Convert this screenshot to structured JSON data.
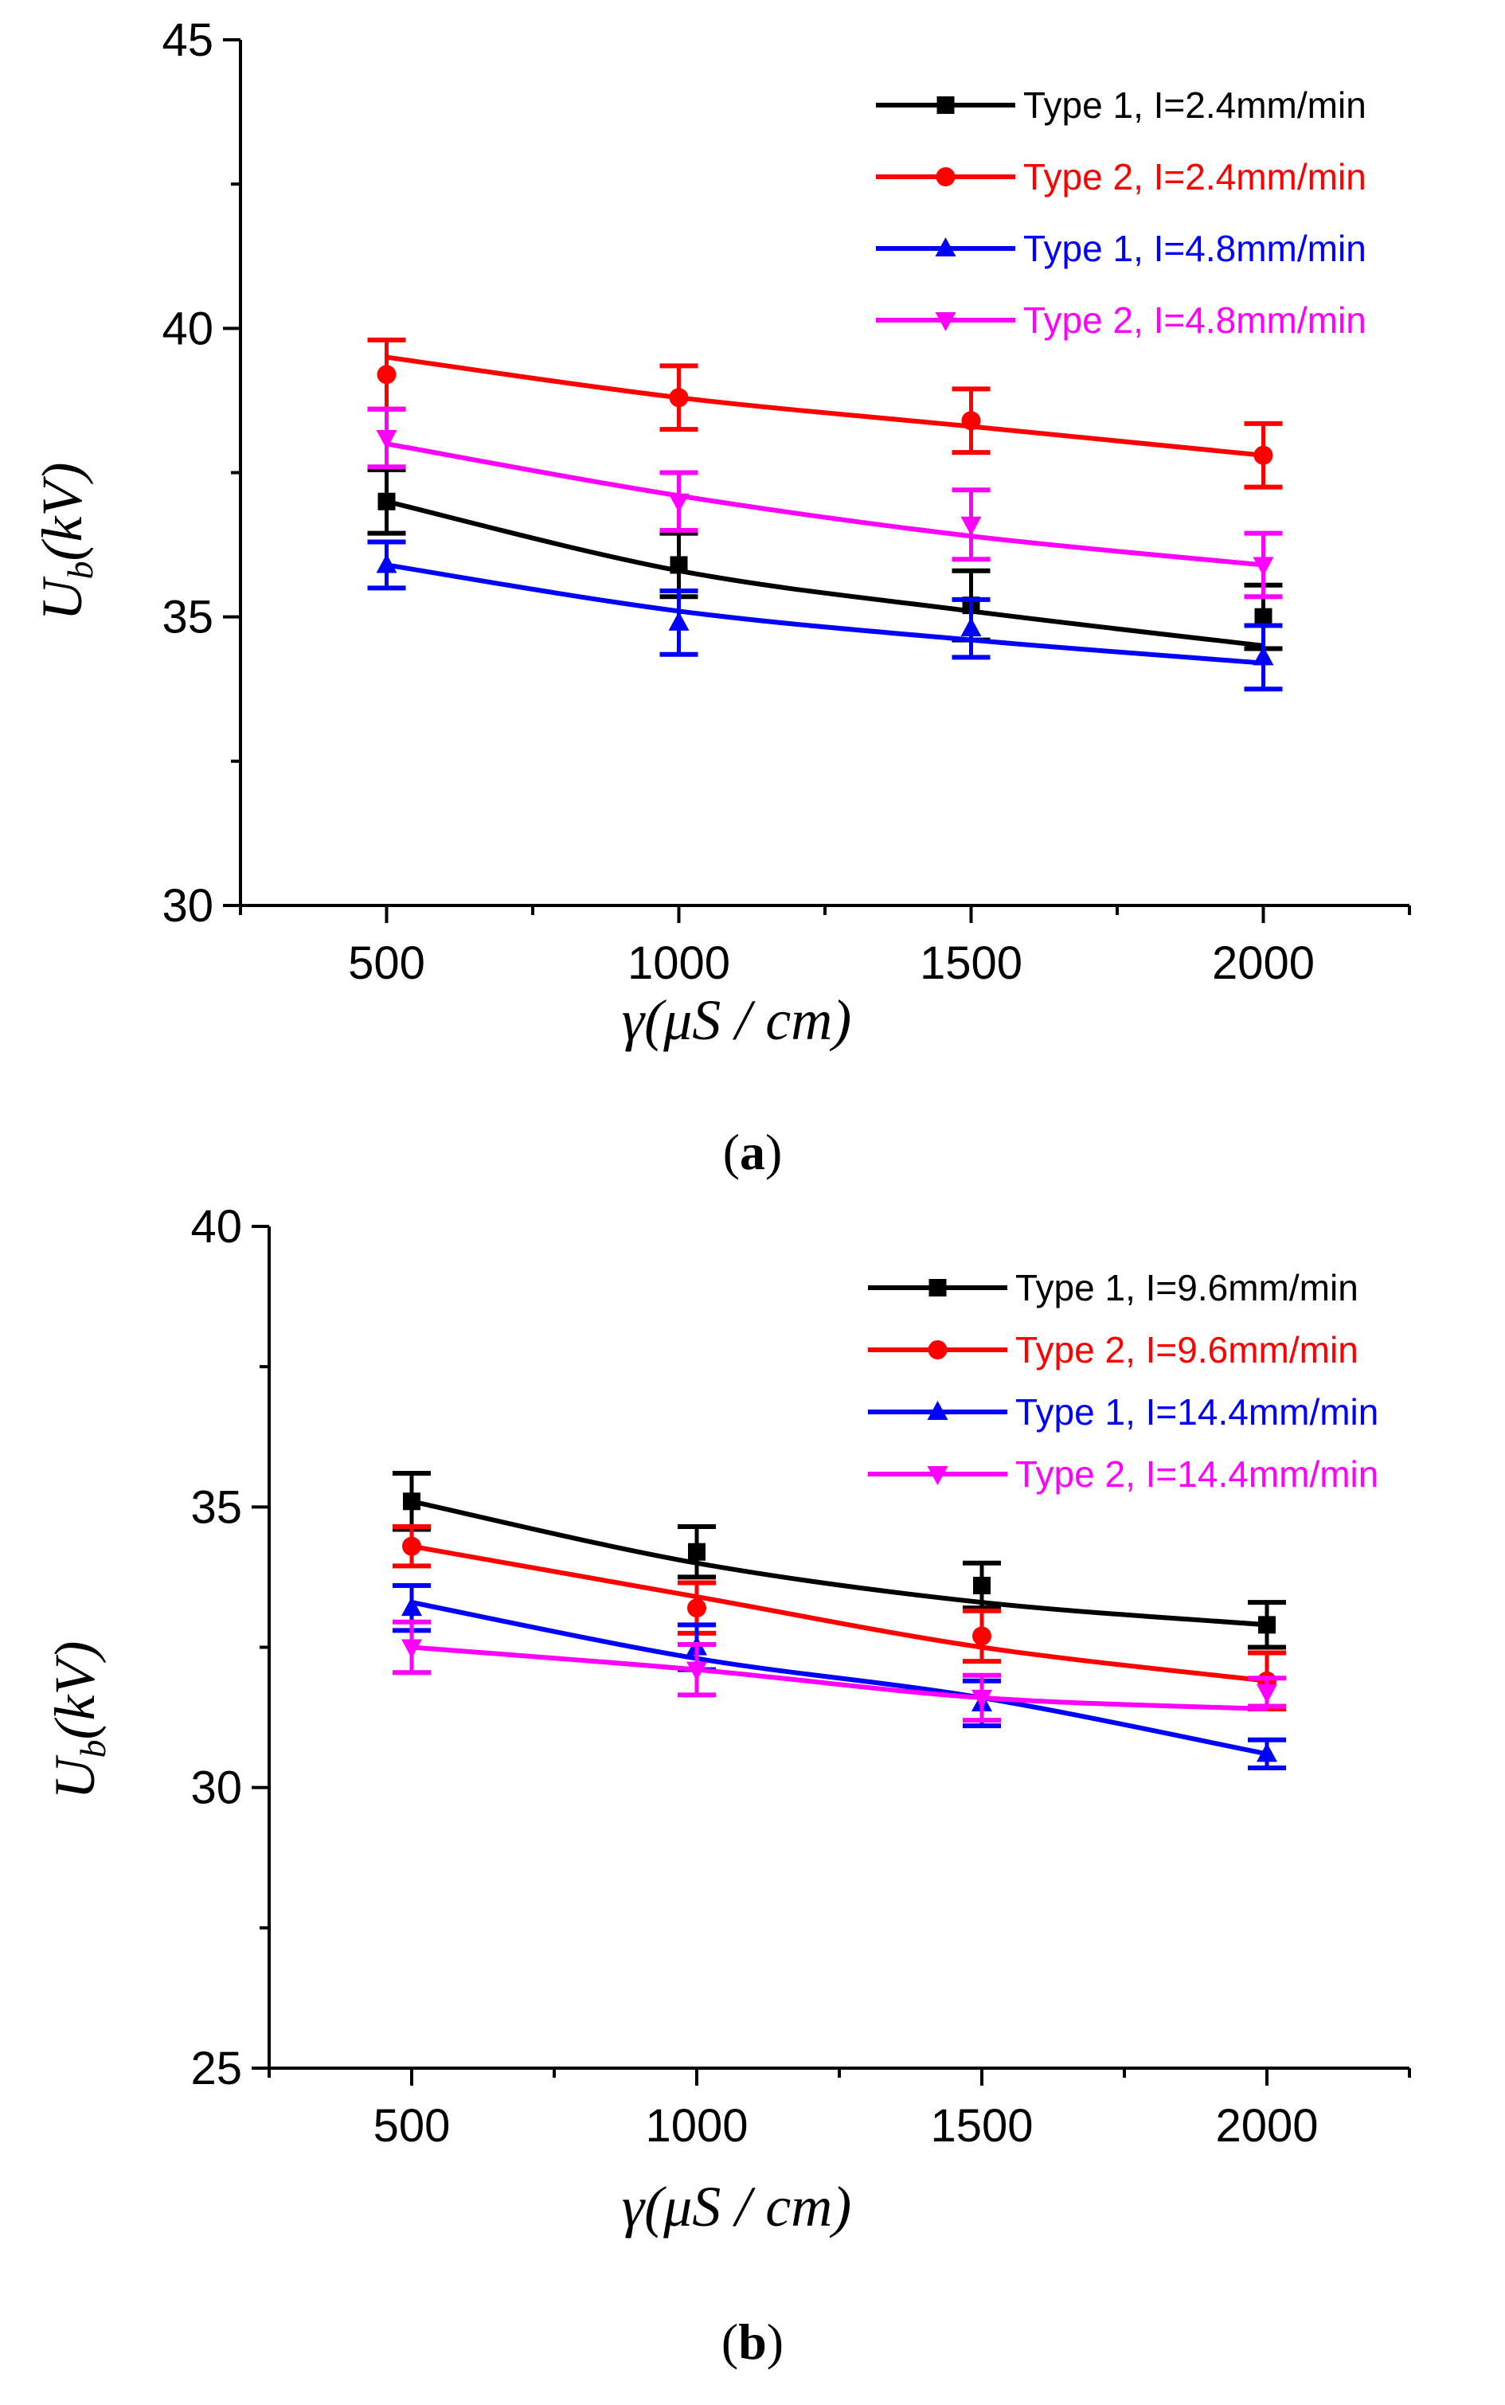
{
  "colors": {
    "type1_low": "#000000",
    "type2_low": "#ff0000",
    "type1_high": "#0000ff",
    "type2_high": "#ff00ff"
  },
  "chart_data": [
    {
      "type": "line",
      "panel_label_open": "(",
      "panel_label_letter": "a",
      "panel_label_close": ")",
      "xlabel_main": "γ(μS / cm)",
      "ylabel_main": "U",
      "ylabel_sub": "b",
      "ylabel_rest": "(kV)",
      "xlim": [
        250,
        2250
      ],
      "ylim": [
        30,
        45
      ],
      "xticks": [
        500,
        1000,
        1500,
        2000
      ],
      "yticks": [
        30,
        35,
        40,
        45
      ],
      "legend_position": "top-right",
      "series": [
        {
          "name": "Type 1, I=2.4mm/min",
          "color": "#000000",
          "marker": "square",
          "x": [
            500,
            1000,
            1500,
            2000
          ],
          "y": [
            37.0,
            35.9,
            35.2,
            35.0
          ],
          "err": [
            0.55,
            0.55,
            0.6,
            0.55
          ],
          "fit": [
            37.0,
            35.8,
            35.1,
            34.5
          ]
        },
        {
          "name": "Type 2, I=2.4mm/min",
          "color": "#ff0000",
          "marker": "circle",
          "x": [
            500,
            1000,
            1500,
            2000
          ],
          "y": [
            39.2,
            38.8,
            38.4,
            37.8
          ],
          "err": [
            0.6,
            0.55,
            0.55,
            0.55
          ],
          "fit": [
            39.5,
            38.8,
            38.3,
            37.8
          ]
        },
        {
          "name": "Type 1, I=4.8mm/min",
          "color": "#0000ff",
          "marker": "triangle-up",
          "x": [
            500,
            1000,
            1500,
            2000
          ],
          "y": [
            35.9,
            34.9,
            34.8,
            34.3
          ],
          "err": [
            0.4,
            0.55,
            0.5,
            0.55
          ],
          "fit": [
            35.9,
            35.1,
            34.6,
            34.2
          ]
        },
        {
          "name": "Type 2, I=4.8mm/min",
          "color": "#ff00ff",
          "marker": "triangle-down",
          "x": [
            500,
            1000,
            1500,
            2000
          ],
          "y": [
            38.1,
            37.0,
            36.6,
            35.9
          ],
          "err": [
            0.5,
            0.5,
            0.6,
            0.55
          ],
          "fit": [
            38.0,
            37.1,
            36.4,
            35.9
          ]
        }
      ]
    },
    {
      "type": "line",
      "panel_label_open": "(",
      "panel_label_letter": "b",
      "panel_label_close": ")",
      "xlabel_main": "γ(μS / cm)",
      "ylabel_main": "U",
      "ylabel_sub": "b",
      "ylabel_rest": "(kV)",
      "xlim": [
        250,
        2250
      ],
      "ylim": [
        25,
        40
      ],
      "xticks": [
        500,
        1000,
        1500,
        2000
      ],
      "yticks": [
        25,
        30,
        35,
        40
      ],
      "legend_position": "top-right",
      "series": [
        {
          "name": "Type 1, I=9.6mm/min",
          "color": "#000000",
          "marker": "square",
          "x": [
            500,
            1000,
            1500,
            2000
          ],
          "y": [
            35.1,
            34.2,
            33.6,
            32.9
          ],
          "err": [
            0.5,
            0.45,
            0.4,
            0.4
          ],
          "fit": [
            35.1,
            34.0,
            33.3,
            32.9
          ]
        },
        {
          "name": "Type 2, I=9.6mm/min",
          "color": "#ff0000",
          "marker": "circle",
          "x": [
            500,
            1000,
            1500,
            2000
          ],
          "y": [
            34.3,
            33.2,
            32.7,
            31.9
          ],
          "err": [
            0.35,
            0.45,
            0.45,
            0.5
          ],
          "fit": [
            34.3,
            33.4,
            32.5,
            31.9
          ]
        },
        {
          "name": "Type 1, I=14.4mm/min",
          "color": "#0000ff",
          "marker": "triangle-up",
          "x": [
            500,
            1000,
            1500,
            2000
          ],
          "y": [
            33.2,
            32.5,
            31.5,
            30.6
          ],
          "err": [
            0.4,
            0.4,
            0.4,
            0.25
          ],
          "fit": [
            33.3,
            32.3,
            31.6,
            30.6
          ]
        },
        {
          "name": "Type 2, I=14.4mm/min",
          "color": "#ff00ff",
          "marker": "triangle-down",
          "x": [
            500,
            1000,
            1500,
            2000
          ],
          "y": [
            32.5,
            32.1,
            31.6,
            31.7
          ],
          "err": [
            0.45,
            0.45,
            0.4,
            0.25
          ],
          "fit": [
            32.5,
            32.1,
            31.6,
            31.4
          ]
        }
      ]
    }
  ]
}
